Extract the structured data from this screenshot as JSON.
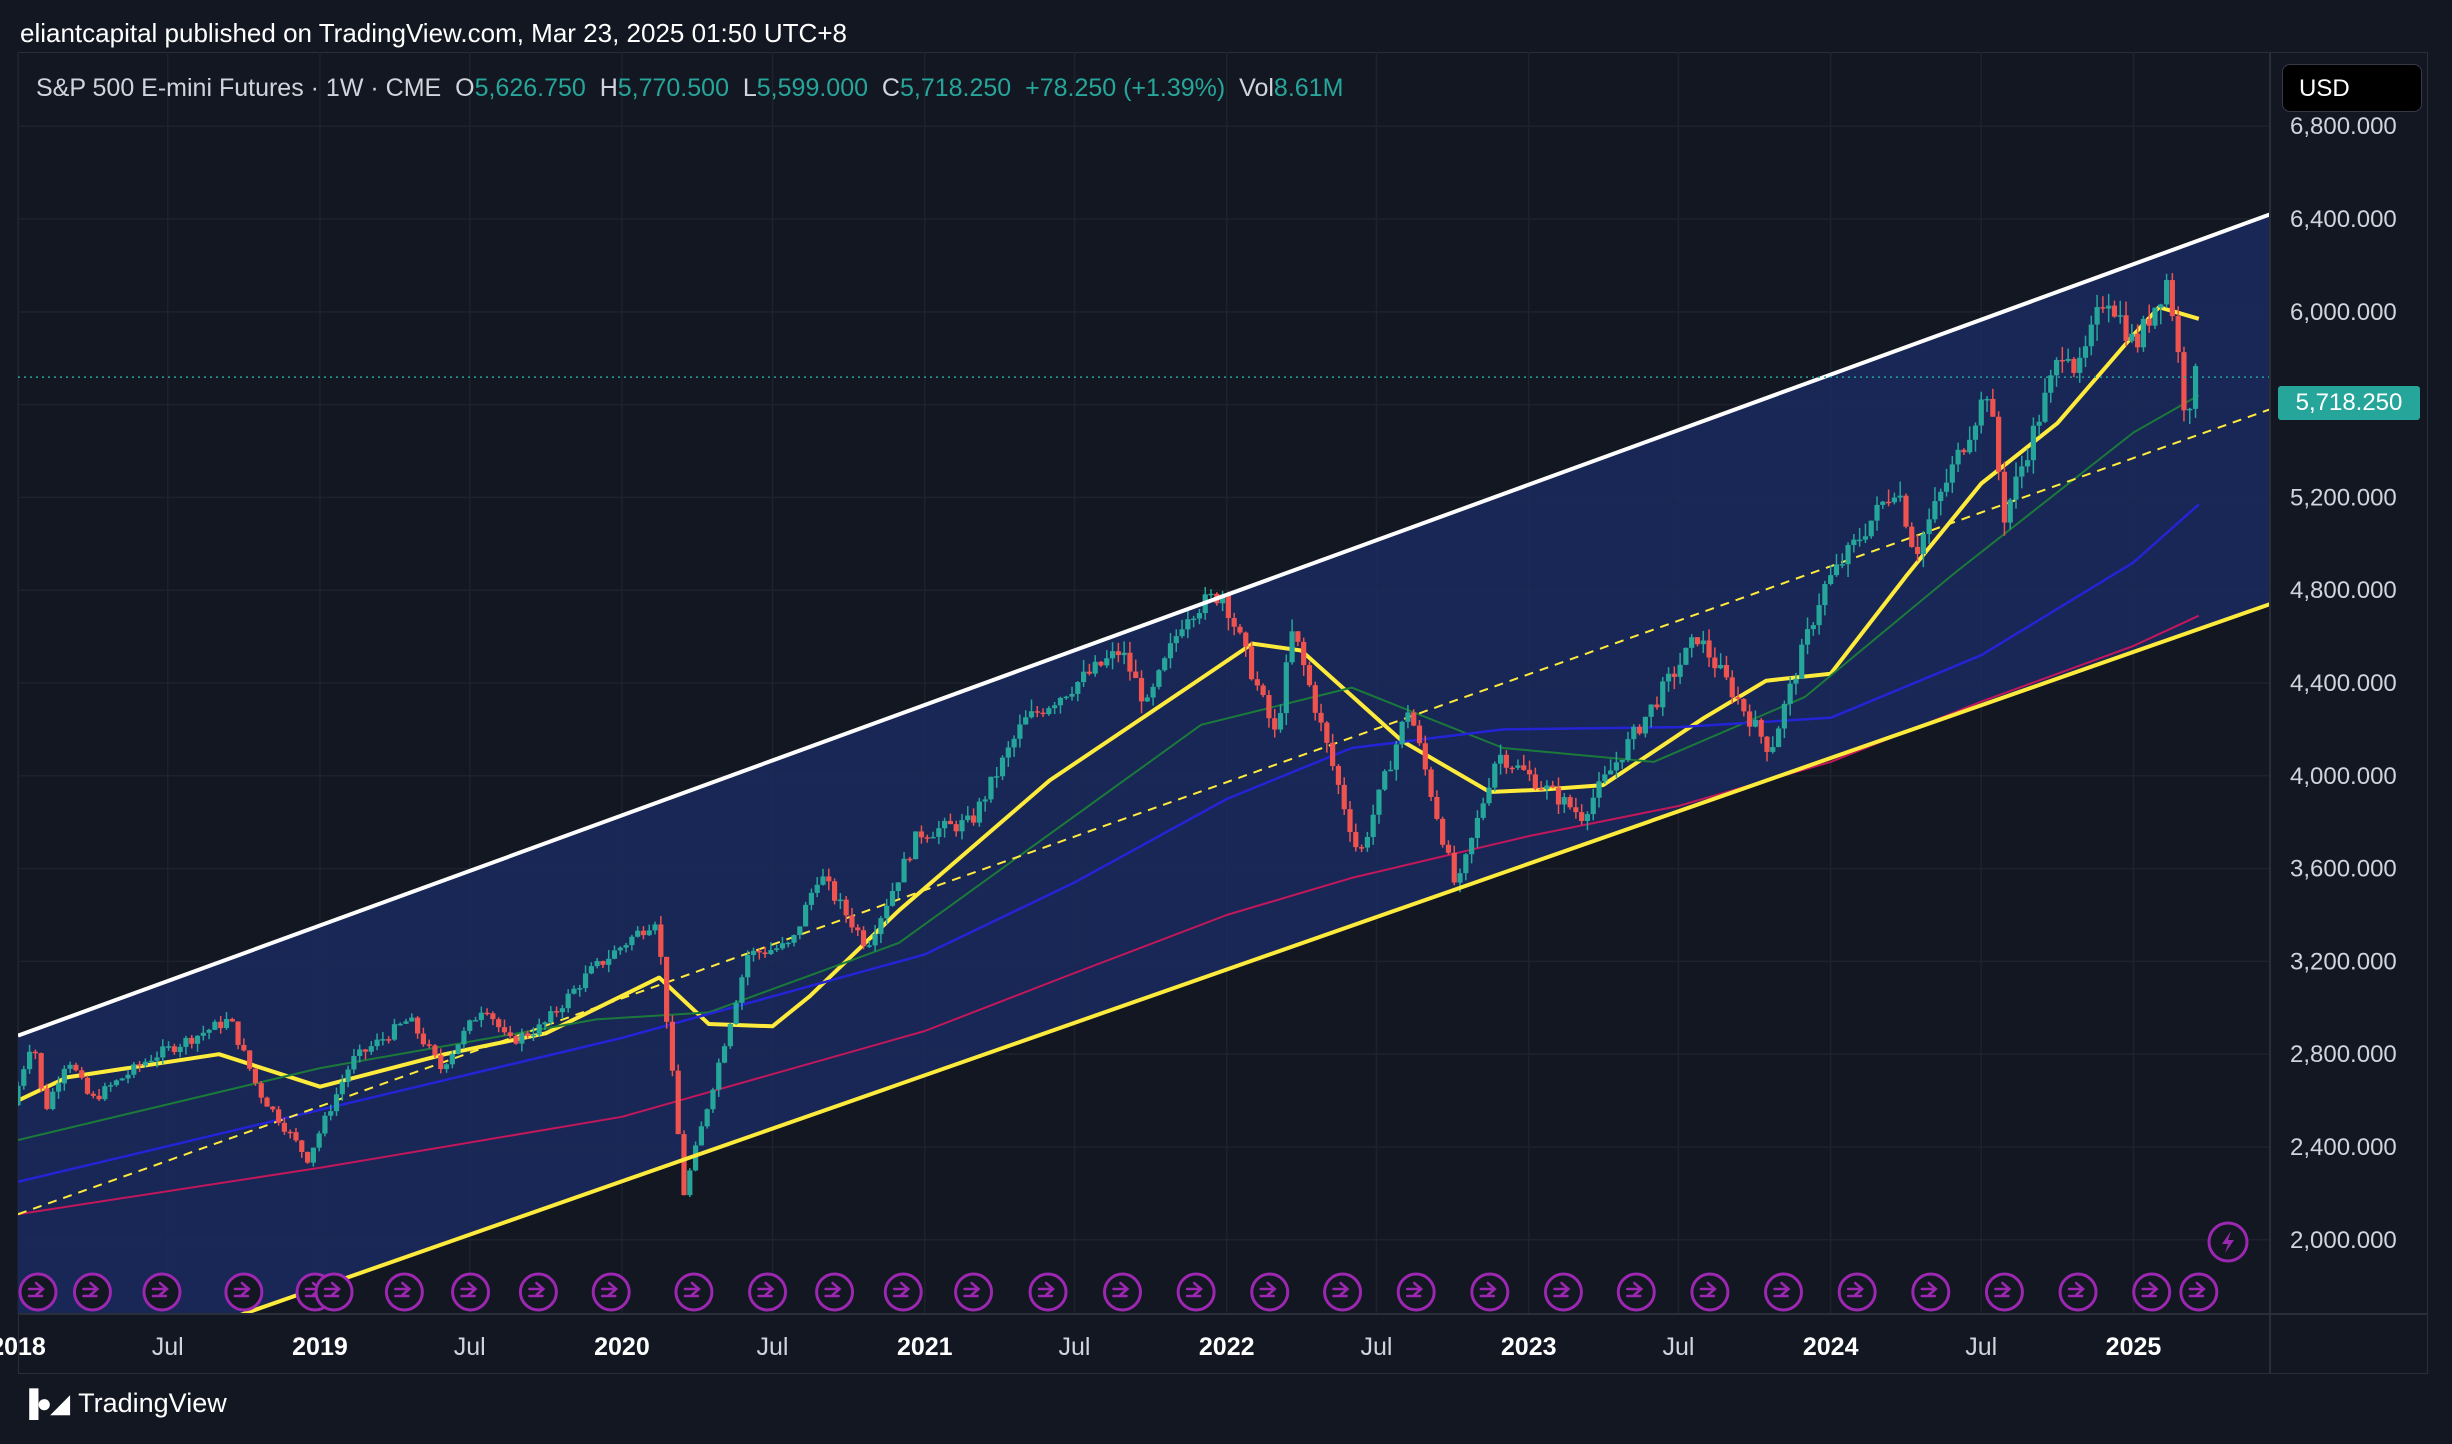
{
  "header": {
    "text": "eliantcapital published on TradingView.com, Mar 23, 2025 01:50 UTC+8"
  },
  "symbol": {
    "name": "S&P 500 E-mini Futures · 1W · CME",
    "o_label": "O",
    "o": "5,626.750",
    "h_label": "H",
    "h": "5,770.500",
    "l_label": "L",
    "l": "5,599.000",
    "c_label": "C",
    "c": "5,718.250",
    "change": "+78.250 (+1.39%)",
    "vol_label": "Vol",
    "vol": "8.61M"
  },
  "currency": "USD",
  "last_price": "5,718.250",
  "footer": {
    "brand": "TradingView"
  },
  "colors": {
    "background": "#131722",
    "up": "#26a69a",
    "down": "#ef5350",
    "channel_fill": "#1a2a5e",
    "upper_line": "#ffffff",
    "lower_line": "#ffeb3b",
    "ma_fast": "#ffeb3b",
    "ma_mid": "#1b7a3a",
    "ma_slow": "#2424d6",
    "ma_long": "#c2185b"
  },
  "icons": {
    "event": "arrow-circle-icon",
    "alert": "lightning-icon"
  },
  "chart_data": {
    "type": "candlestick",
    "interval": "1W",
    "yaxis": {
      "ticks": [
        "6,800.000",
        "6,400.000",
        "6,000.000",
        "5,600.000",
        "5,200.000",
        "4,800.000",
        "4,400.000",
        "4,000.000",
        "3,600.000",
        "3,200.000",
        "2,800.000",
        "2,400.000",
        "2,000.000"
      ],
      "tick_values": [
        6800,
        6400,
        6000,
        5600,
        5200,
        4800,
        4400,
        4000,
        3600,
        3200,
        2800,
        2400,
        2000
      ],
      "range": [
        1680,
        7120
      ],
      "position": "right"
    },
    "xaxis": {
      "range": [
        "2018-01-01",
        "2025-06-15"
      ],
      "ticks": [
        {
          "label": "2018",
          "date": "2018-01-01",
          "year": true
        },
        {
          "label": "Jul",
          "date": "2018-07-01",
          "year": false
        },
        {
          "label": "2019",
          "date": "2019-01-01",
          "year": true
        },
        {
          "label": "Jul",
          "date": "2019-07-01",
          "year": false
        },
        {
          "label": "2020",
          "date": "2020-01-01",
          "year": true
        },
        {
          "label": "Jul",
          "date": "2020-07-01",
          "year": false
        },
        {
          "label": "2021",
          "date": "2021-01-01",
          "year": true
        },
        {
          "label": "Jul",
          "date": "2021-07-01",
          "year": false
        },
        {
          "label": "2022",
          "date": "2022-01-01",
          "year": true
        },
        {
          "label": "Jul",
          "date": "2022-07-01",
          "year": false
        },
        {
          "label": "2023",
          "date": "2023-01-01",
          "year": true
        },
        {
          "label": "Jul",
          "date": "2023-07-01",
          "year": false
        },
        {
          "label": "2024",
          "date": "2024-01-01",
          "year": true
        },
        {
          "label": "Jul",
          "date": "2024-07-01",
          "year": false
        },
        {
          "label": "2025",
          "date": "2025-01-01",
          "year": true
        }
      ]
    },
    "price_anchors": [
      [
        "2018-01-01",
        2580
      ],
      [
        "2018-01-26",
        2880
      ],
      [
        "2018-02-09",
        2550
      ],
      [
        "2018-03-09",
        2790
      ],
      [
        "2018-04-06",
        2600
      ],
      [
        "2018-06-15",
        2780
      ],
      [
        "2018-09-21",
        2950
      ],
      [
        "2018-10-26",
        2640
      ],
      [
        "2018-12-24",
        2350
      ],
      [
        "2019-02-15",
        2770
      ],
      [
        "2019-04-26",
        2950
      ],
      [
        "2019-06-03",
        2740
      ],
      [
        "2019-07-26",
        3020
      ],
      [
        "2019-08-23",
        2850
      ],
      [
        "2019-10-04",
        2920
      ],
      [
        "2019-11-29",
        3150
      ],
      [
        "2020-02-19",
        3390
      ],
      [
        "2020-03-23",
        2200
      ],
      [
        "2020-06-08",
        3230
      ],
      [
        "2020-07-31",
        3270
      ],
      [
        "2020-09-02",
        3580
      ],
      [
        "2020-10-30",
        3270
      ],
      [
        "2020-12-31",
        3750
      ],
      [
        "2021-03-05",
        3800
      ],
      [
        "2021-05-07",
        4230
      ],
      [
        "2021-09-02",
        4540
      ],
      [
        "2021-10-04",
        4300
      ],
      [
        "2021-11-19",
        4700
      ],
      [
        "2022-01-03",
        4790
      ],
      [
        "2022-03-08",
        4170
      ],
      [
        "2022-03-29",
        4630
      ],
      [
        "2022-06-17",
        3650
      ],
      [
        "2022-08-16",
        4300
      ],
      [
        "2022-10-13",
        3500
      ],
      [
        "2022-12-01",
        4100
      ],
      [
        "2023-03-13",
        3830
      ],
      [
        "2023-07-31",
        4600
      ],
      [
        "2023-10-27",
        4110
      ],
      [
        "2023-12-29",
        4800
      ],
      [
        "2024-03-28",
        5260
      ],
      [
        "2024-04-19",
        4960
      ],
      [
        "2024-07-16",
        5670
      ],
      [
        "2024-08-05",
        5120
      ],
      [
        "2024-10-18",
        5880
      ],
      [
        "2024-11-01",
        5720
      ],
      [
        "2024-12-06",
        6090
      ],
      [
        "2025-01-10",
        5850
      ],
      [
        "2025-02-19",
        6150
      ],
      [
        "2025-03-13",
        5530
      ],
      [
        "2025-03-21",
        5718
      ]
    ],
    "moving_averages": [
      {
        "key": "ma_fast",
        "points": [
          [
            "2018-01-01",
            2600
          ],
          [
            "2018-03-01",
            2700
          ],
          [
            "2018-09-01",
            2800
          ],
          [
            "2019-01-01",
            2660
          ],
          [
            "2019-06-01",
            2800
          ],
          [
            "2019-10-01",
            2890
          ],
          [
            "2020-02-15",
            3130
          ],
          [
            "2020-04-15",
            2930
          ],
          [
            "2020-07-01",
            2920
          ],
          [
            "2020-08-15",
            3050
          ],
          [
            "2020-12-01",
            3420
          ],
          [
            "2021-06-01",
            3980
          ],
          [
            "2021-12-01",
            4420
          ],
          [
            "2022-02-01",
            4570
          ],
          [
            "2022-04-01",
            4540
          ],
          [
            "2022-08-01",
            4150
          ],
          [
            "2022-11-15",
            3930
          ],
          [
            "2023-01-15",
            3940
          ],
          [
            "2023-04-01",
            3960
          ],
          [
            "2023-08-01",
            4250
          ],
          [
            "2023-10-15",
            4410
          ],
          [
            "2024-01-01",
            4440
          ],
          [
            "2024-04-01",
            4860
          ],
          [
            "2024-07-01",
            5260
          ],
          [
            "2024-10-01",
            5520
          ],
          [
            "2025-01-01",
            5900
          ],
          [
            "2025-02-01",
            6020
          ],
          [
            "2025-03-21",
            5970
          ]
        ]
      },
      {
        "key": "ma_mid",
        "points": [
          [
            "2018-01-01",
            2430
          ],
          [
            "2019-01-01",
            2740
          ],
          [
            "2019-12-01",
            2950
          ],
          [
            "2020-04-15",
            2980
          ],
          [
            "2020-12-01",
            3280
          ],
          [
            "2021-12-01",
            4220
          ],
          [
            "2022-06-01",
            4380
          ],
          [
            "2022-12-01",
            4120
          ],
          [
            "2023-06-01",
            4060
          ],
          [
            "2023-12-01",
            4340
          ],
          [
            "2024-06-01",
            4880
          ],
          [
            "2025-01-01",
            5480
          ],
          [
            "2025-03-21",
            5640
          ]
        ]
      },
      {
        "key": "ma_slow",
        "points": [
          [
            "2018-01-01",
            2250
          ],
          [
            "2019-01-01",
            2560
          ],
          [
            "2020-01-01",
            2870
          ],
          [
            "2021-01-01",
            3230
          ],
          [
            "2021-07-01",
            3540
          ],
          [
            "2022-01-01",
            3900
          ],
          [
            "2022-06-01",
            4120
          ],
          [
            "2022-12-01",
            4200
          ],
          [
            "2023-07-01",
            4210
          ],
          [
            "2024-01-01",
            4250
          ],
          [
            "2024-07-01",
            4520
          ],
          [
            "2025-01-01",
            4920
          ],
          [
            "2025-03-21",
            5170
          ]
        ]
      },
      {
        "key": "ma_long",
        "points": [
          [
            "2018-01-01",
            2110
          ],
          [
            "2019-01-01",
            2310
          ],
          [
            "2020-01-01",
            2530
          ],
          [
            "2021-01-01",
            2900
          ],
          [
            "2021-07-01",
            3150
          ],
          [
            "2022-01-01",
            3400
          ],
          [
            "2022-06-01",
            3560
          ],
          [
            "2023-01-01",
            3740
          ],
          [
            "2023-07-01",
            3870
          ],
          [
            "2024-01-01",
            4060
          ],
          [
            "2024-07-01",
            4320
          ],
          [
            "2025-01-01",
            4560
          ],
          [
            "2025-03-21",
            4690
          ]
        ]
      }
    ],
    "channel": {
      "upper": [
        [
          "2018-01-01",
          2880
        ],
        [
          "2025-06-15",
          6420
        ]
      ],
      "lower": [
        [
          "2018-01-01",
          1340
        ],
        [
          "2025-06-15",
          4740
        ]
      ],
      "mid": [
        [
          "2018-01-01",
          2110
        ],
        [
          "2025-06-15",
          5580
        ]
      ],
      "fill_from": "2018-01-01",
      "fill_to": "2025-06-15"
    },
    "last_price_value": 5718.25,
    "event_markers": [
      "2018-01-05",
      "2018-04-01",
      "2018-06-24",
      "2018-10-01",
      "2018-12-26",
      "2019-01-18",
      "2019-04-13",
      "2019-07-02",
      "2019-09-22",
      "2019-12-19",
      "2020-03-28",
      "2020-06-25",
      "2020-09-14",
      "2020-12-06",
      "2021-03-01",
      "2021-05-30",
      "2021-08-28",
      "2021-11-25",
      "2022-02-22",
      "2022-05-21",
      "2022-08-18",
      "2022-11-15",
      "2023-02-12",
      "2023-05-11",
      "2023-08-08",
      "2023-11-05",
      "2024-02-02",
      "2024-05-01",
      "2024-07-29",
      "2024-10-26",
      "2025-01-23",
      "2025-03-21"
    ]
  }
}
